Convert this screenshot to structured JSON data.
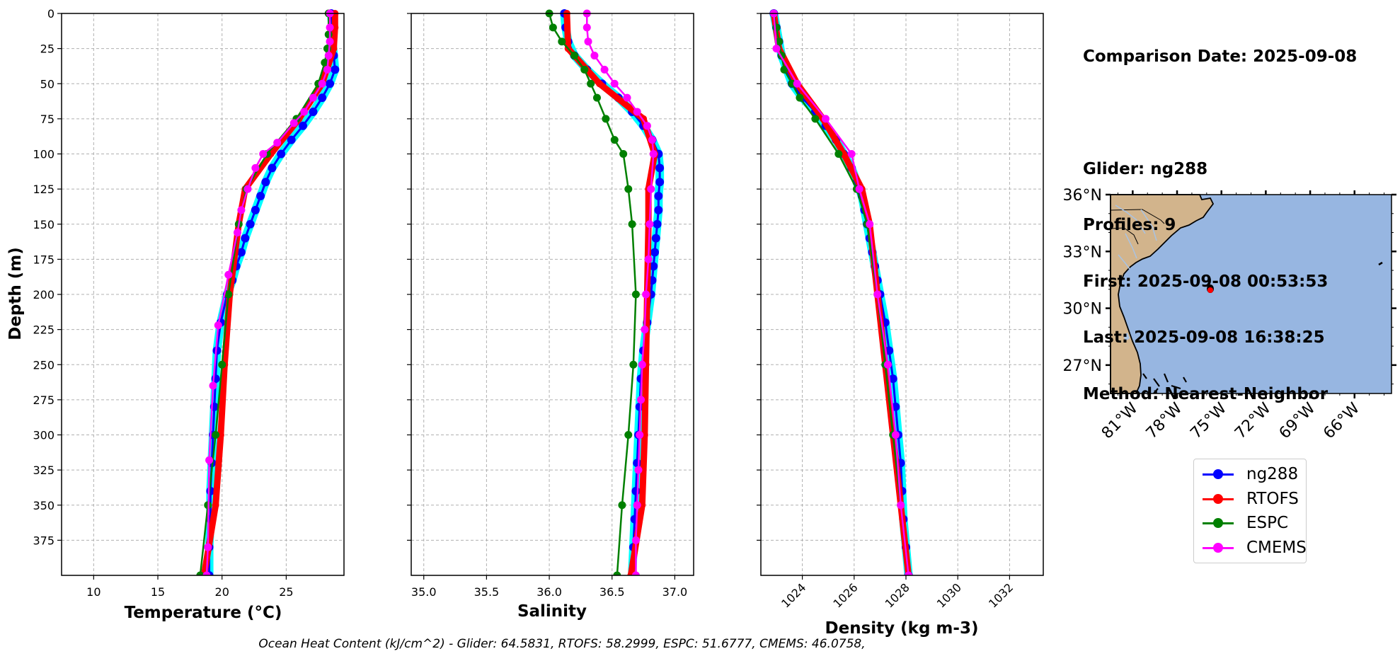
{
  "chart_data": [
    {
      "type": "line",
      "xlabel": "Temperature (°C)",
      "ylabel": "Depth (m)",
      "xlim": [
        7.5,
        29.5
      ],
      "ylim": [
        400,
        0
      ],
      "xticks": [
        "10",
        "15",
        "20",
        "25"
      ],
      "yticks": [
        "0",
        "25",
        "50",
        "75",
        "100",
        "125",
        "150",
        "175",
        "200",
        "225",
        "250",
        "275",
        "300",
        "325",
        "350",
        "375"
      ],
      "grid": true,
      "series": [
        {
          "name": "ng288",
          "color": "#0000ff",
          "depth": [
            0,
            10,
            20,
            30,
            40,
            50,
            60,
            70,
            80,
            90,
            100,
            110,
            120,
            130,
            140,
            150,
            160,
            170,
            180,
            190,
            200,
            220,
            240,
            260,
            280,
            300,
            320,
            340,
            360,
            380,
            400
          ],
          "values": [
            28.5,
            28.6,
            28.6,
            28.7,
            28.8,
            28.4,
            27.8,
            27.1,
            26.3,
            25.4,
            24.6,
            23.9,
            23.4,
            23.0,
            22.6,
            22.2,
            21.8,
            21.5,
            21.1,
            20.8,
            20.4,
            19.9,
            19.6,
            19.5,
            19.4,
            19.3,
            19.2,
            19.1,
            19.1,
            19.0,
            19.0
          ]
        },
        {
          "name": "RTOFS",
          "color": "#ff0000",
          "depth": [
            0,
            10,
            25,
            50,
            75,
            100,
            125,
            150,
            200,
            250,
            300,
            350,
            400
          ],
          "values": [
            28.8,
            28.8,
            28.7,
            27.8,
            26.0,
            23.8,
            21.8,
            21.3,
            20.6,
            20.2,
            19.9,
            19.5,
            18.6
          ]
        },
        {
          "name": "ESPC",
          "color": "#008000",
          "depth": [
            0,
            15,
            25,
            35,
            50,
            75,
            100,
            125,
            150,
            200,
            250,
            300,
            350,
            400
          ],
          "values": [
            28.3,
            28.3,
            28.2,
            28.0,
            27.5,
            25.8,
            23.5,
            21.9,
            21.3,
            20.5,
            20.0,
            19.5,
            18.9,
            18.3
          ]
        },
        {
          "name": "CMEMS",
          "color": "#ff00ff",
          "depth": [
            0,
            10,
            20,
            30,
            40,
            50,
            60,
            70,
            78,
            92,
            100,
            110,
            125,
            140,
            156,
            186,
            222,
            265,
            318,
            380,
            400
          ],
          "values": [
            28.4,
            28.4,
            28.4,
            28.3,
            28.2,
            27.8,
            27.1,
            26.4,
            25.6,
            24.3,
            23.2,
            22.6,
            22.0,
            21.5,
            21.2,
            20.5,
            19.7,
            19.3,
            19.0,
            18.9,
            18.8
          ]
        }
      ]
    },
    {
      "type": "line",
      "xlabel": "Salinity",
      "xlim": [
        34.9,
        37.15
      ],
      "ylim": [
        400,
        0
      ],
      "xticks": [
        "35.0",
        "35.5",
        "36.0",
        "36.5",
        "37.0"
      ],
      "grid": true,
      "series": [
        {
          "name": "ng288",
          "color": "#0000ff",
          "depth": [
            0,
            10,
            20,
            30,
            40,
            50,
            60,
            70,
            80,
            90,
            100,
            110,
            120,
            130,
            140,
            150,
            160,
            170,
            180,
            190,
            200,
            220,
            240,
            260,
            280,
            300,
            320,
            340,
            360,
            380,
            400
          ],
          "values": [
            36.12,
            36.13,
            36.15,
            36.2,
            36.3,
            36.42,
            36.55,
            36.66,
            36.75,
            36.82,
            36.87,
            36.88,
            36.88,
            36.87,
            36.87,
            36.86,
            36.85,
            36.84,
            36.83,
            36.82,
            36.81,
            36.78,
            36.75,
            36.73,
            36.72,
            36.71,
            36.7,
            36.69,
            36.68,
            36.67,
            36.66
          ]
        },
        {
          "name": "RTOFS",
          "color": "#ff0000",
          "depth": [
            0,
            25,
            50,
            75,
            100,
            125,
            150,
            200,
            250,
            300,
            350,
            400
          ],
          "values": [
            36.14,
            36.15,
            36.4,
            36.75,
            36.84,
            36.79,
            36.79,
            36.78,
            36.77,
            36.76,
            36.74,
            36.65
          ]
        },
        {
          "name": "ESPC",
          "color": "#008000",
          "depth": [
            0,
            10,
            20,
            30,
            40,
            50,
            60,
            75,
            90,
            100,
            125,
            150,
            200,
            250,
            300,
            350,
            400
          ],
          "values": [
            36.0,
            36.03,
            36.1,
            36.2,
            36.28,
            36.33,
            36.38,
            36.45,
            36.52,
            36.59,
            36.63,
            36.66,
            36.69,
            36.67,
            36.63,
            36.58,
            36.54
          ]
        },
        {
          "name": "CMEMS",
          "color": "#ff00ff",
          "depth": [
            0,
            10,
            20,
            30,
            40,
            50,
            60,
            70,
            80,
            90,
            100,
            125,
            150,
            175,
            200,
            225,
            250,
            275,
            300,
            325,
            350,
            375,
            400
          ],
          "values": [
            36.3,
            36.3,
            36.31,
            36.36,
            36.44,
            36.52,
            36.62,
            36.7,
            36.78,
            36.82,
            36.83,
            36.81,
            36.8,
            36.79,
            36.77,
            36.76,
            36.74,
            36.73,
            36.72,
            36.71,
            36.7,
            36.69,
            36.69
          ]
        }
      ]
    },
    {
      "type": "line",
      "xlabel": "Density (kg m-3)",
      "xlim": [
        1022.4,
        1033.3
      ],
      "ylim": [
        400,
        0
      ],
      "xticks": [
        "1024",
        "1026",
        "1028",
        "1030",
        "1032"
      ],
      "grid": true,
      "series": [
        {
          "name": "ng288",
          "color": "#0000ff",
          "depth": [
            0,
            10,
            20,
            30,
            40,
            50,
            60,
            70,
            80,
            90,
            100,
            110,
            120,
            130,
            140,
            150,
            160,
            170,
            180,
            190,
            200,
            220,
            240,
            260,
            280,
            300,
            320,
            340,
            360,
            380,
            400
          ],
          "values": [
            1022.9,
            1023.0,
            1023.1,
            1023.2,
            1023.4,
            1023.6,
            1024.0,
            1024.5,
            1024.9,
            1025.3,
            1025.6,
            1025.9,
            1026.1,
            1026.3,
            1026.4,
            1026.5,
            1026.6,
            1026.7,
            1026.8,
            1026.9,
            1027.0,
            1027.2,
            1027.35,
            1027.5,
            1027.6,
            1027.7,
            1027.8,
            1027.85,
            1027.9,
            1028.0,
            1028.1
          ]
        },
        {
          "name": "RTOFS",
          "color": "#ff0000",
          "depth": [
            0,
            25,
            50,
            75,
            100,
            125,
            150,
            200,
            250,
            300,
            350,
            400
          ],
          "values": [
            1022.9,
            1023.1,
            1023.8,
            1024.8,
            1025.6,
            1026.3,
            1026.6,
            1026.9,
            1027.2,
            1027.5,
            1027.8,
            1028.1
          ]
        },
        {
          "name": "ESPC",
          "color": "#008000",
          "depth": [
            0,
            10,
            20,
            30,
            40,
            50,
            60,
            75,
            100,
            125,
            150,
            200,
            250,
            300,
            350,
            400
          ],
          "values": [
            1022.9,
            1023.0,
            1023.1,
            1023.2,
            1023.3,
            1023.6,
            1023.9,
            1024.5,
            1025.4,
            1026.1,
            1026.5,
            1026.9,
            1027.2,
            1027.5,
            1027.8,
            1028.1
          ]
        },
        {
          "name": "CMEMS",
          "color": "#ff00ff",
          "depth": [
            0,
            25,
            50,
            75,
            100,
            125,
            150,
            200,
            250,
            300,
            350,
            400
          ],
          "values": [
            1022.9,
            1023.0,
            1023.8,
            1024.9,
            1025.9,
            1026.2,
            1026.6,
            1026.9,
            1027.3,
            1027.6,
            1027.8,
            1028.1
          ]
        }
      ]
    }
  ],
  "info": {
    "comparison_date": "Comparison Date: 2025-09-08",
    "glider": "Glider: ng288",
    "profiles": "Profiles: 9",
    "first": "First: 2025-09-08 00:53:53",
    "last": "Last: 2025-09-08 16:38:25",
    "method": "Method: Nearest-Neighbor"
  },
  "map": {
    "lon_range": [
      -82.5,
      -63.5
    ],
    "lat_range": [
      25.5,
      36.0
    ],
    "xticks": [
      "81°W",
      "78°W",
      "75°W",
      "72°W",
      "69°W",
      "66°W"
    ],
    "yticks": [
      "36°N",
      "33°N",
      "30°N",
      "27°N"
    ],
    "land_color": "#d2b48c",
    "ocean_color": "#97b6e1",
    "glider_position": {
      "lon": -75.7,
      "lat": 30.9
    }
  },
  "legend": {
    "placement": "below-map",
    "entries": [
      {
        "label": "ng288",
        "color": "#0000ff"
      },
      {
        "label": "RTOFS",
        "color": "#ff0000"
      },
      {
        "label": "ESPC",
        "color": "#008000"
      },
      {
        "label": "CMEMS",
        "color": "#ff00ff"
      }
    ]
  },
  "footer": "Ocean Heat Content (kJ/cm^2) - Glider: 64.5831,  RTOFS: 58.2999,  ESPC: 51.6777,  CMEMS: 46.0758,"
}
